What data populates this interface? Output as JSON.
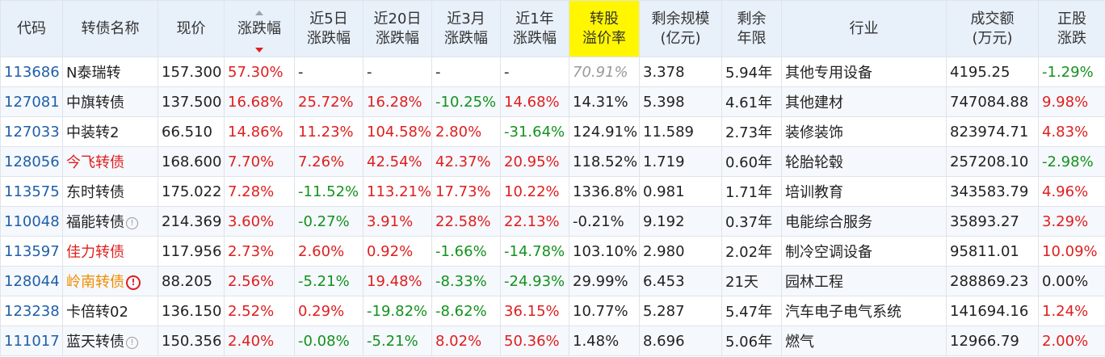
{
  "headers": {
    "code": "代码",
    "name": "转债名称",
    "price": "现价",
    "change": "涨跌幅",
    "chg5d_1": "近5日",
    "chg5d_2": "涨跌幅",
    "chg20d_1": "近20日",
    "chg20d_2": "涨跌幅",
    "chg3m_1": "近3月",
    "chg3m_2": "涨跌幅",
    "chg1y_1": "近1年",
    "chg1y_2": "涨跌幅",
    "premium_1": "转股",
    "premium_2": "溢价率",
    "scale_1": "剩余规模",
    "scale_2": "(亿元)",
    "years_1": "剩余",
    "years_2": "年限",
    "industry": "行业",
    "turnover_1": "成交额",
    "turnover_2": "(万元)",
    "stock_1": "正股",
    "stock_2": "涨跌"
  },
  "colors": {
    "up": "#e01e1e",
    "down": "#13921d",
    "code": "#1f5fa8",
    "highlight_header": "#fff600"
  },
  "rows": [
    {
      "code": "113686",
      "name": "N泰瑞转",
      "price": "157.300",
      "change": "57.30%",
      "chg5d": "-",
      "chg20d": "-",
      "chg3m": "-",
      "chg1y": "-",
      "premium": "70.91%",
      "scale": "3.378",
      "years": "5.94年",
      "industry": "其他专用设备",
      "turnover": "4195.25",
      "stock": "-1.29%"
    },
    {
      "code": "127081",
      "name": "中旗转债",
      "price": "137.500",
      "change": "16.68%",
      "chg5d": "25.72%",
      "chg20d": "16.28%",
      "chg3m": "-10.25%",
      "chg1y": "14.68%",
      "premium": "14.31%",
      "scale": "5.398",
      "years": "4.61年",
      "industry": "其他建材",
      "turnover": "747084.88",
      "stock": "9.98%"
    },
    {
      "code": "127033",
      "name": "中装转2",
      "price": "66.510",
      "change": "14.86%",
      "chg5d": "11.23%",
      "chg20d": "104.58%",
      "chg3m": "2.80%",
      "chg1y": "-31.64%",
      "premium": "124.91%",
      "scale": "11.589",
      "years": "2.73年",
      "industry": "装修装饰",
      "turnover": "823974.71",
      "stock": "4.83%"
    },
    {
      "code": "128056",
      "name": "今飞转债",
      "price": "168.600",
      "change": "7.70%",
      "chg5d": "7.26%",
      "chg20d": "42.54%",
      "chg3m": "42.37%",
      "chg1y": "20.95%",
      "premium": "118.52%",
      "scale": "1.719",
      "years": "0.60年",
      "industry": "轮胎轮毂",
      "turnover": "257208.10",
      "stock": "-2.98%"
    },
    {
      "code": "113575",
      "name": "东时转债",
      "price": "175.022",
      "change": "7.28%",
      "chg5d": "-11.52%",
      "chg20d": "113.21%",
      "chg3m": "17.73%",
      "chg1y": "10.22%",
      "premium": "1336.8%",
      "scale": "0.981",
      "years": "1.71年",
      "industry": "培训教育",
      "turnover": "343583.79",
      "stock": "4.96%"
    },
    {
      "code": "110048",
      "name": "福能转债",
      "price": "214.369",
      "change": "3.60%",
      "chg5d": "-0.27%",
      "chg20d": "3.91%",
      "chg3m": "22.58%",
      "chg1y": "22.13%",
      "premium": "-0.21%",
      "scale": "9.192",
      "years": "0.37年",
      "industry": "电能综合服务",
      "turnover": "35893.27",
      "stock": "3.29%"
    },
    {
      "code": "113597",
      "name": "佳力转债",
      "price": "117.956",
      "change": "2.73%",
      "chg5d": "2.60%",
      "chg20d": "0.92%",
      "chg3m": "-1.66%",
      "chg1y": "-14.78%",
      "premium": "103.10%",
      "scale": "2.980",
      "years": "2.02年",
      "industry": "制冷空调设备",
      "turnover": "95811.01",
      "stock": "10.09%"
    },
    {
      "code": "128044",
      "name": "岭南转债",
      "price": "88.205",
      "change": "2.56%",
      "chg5d": "-5.21%",
      "chg20d": "19.48%",
      "chg3m": "-8.33%",
      "chg1y": "-24.93%",
      "premium": "29.99%",
      "scale": "6.453",
      "years": "21天",
      "industry": "园林工程",
      "turnover": "288869.23",
      "stock": "0.00%"
    },
    {
      "code": "123238",
      "name": "卡倍转02",
      "price": "136.150",
      "change": "2.52%",
      "chg5d": "0.29%",
      "chg20d": "-19.82%",
      "chg3m": "-8.62%",
      "chg1y": "36.15%",
      "premium": "10.77%",
      "scale": "5.287",
      "years": "5.47年",
      "industry": "汽车电子电气系统",
      "turnover": "141694.16",
      "stock": "1.24%"
    },
    {
      "code": "111017",
      "name": "蓝天转债",
      "price": "150.356",
      "change": "2.40%",
      "chg5d": "-0.08%",
      "chg20d": "-5.21%",
      "chg3m": "8.02%",
      "chg1y": "50.36%",
      "premium": "1.48%",
      "scale": "8.696",
      "years": "5.06年",
      "industry": "燃气",
      "turnover": "12966.79",
      "stock": "2.00%"
    }
  ]
}
